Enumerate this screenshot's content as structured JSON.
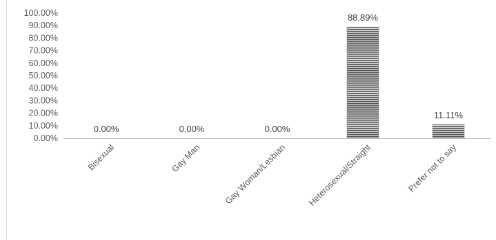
{
  "chart_data": {
    "type": "bar",
    "categories": [
      "Bisexual",
      "Gay Man",
      "Gay Woman/Lesbian",
      "Heterosexual/Straight",
      "Prefer not to say"
    ],
    "values": [
      0.0,
      0.0,
      0.0,
      88.89,
      11.11
    ],
    "data_labels": [
      "0.00%",
      "0.00%",
      "0.00%",
      "88.89%",
      "11.11%"
    ],
    "y_ticks": [
      "0.00%",
      "10.00%",
      "20.00%",
      "30.00%",
      "40.00%",
      "50.00%",
      "60.00%",
      "70.00%",
      "80.00%",
      "90.00%",
      "100.00%"
    ],
    "ylim": [
      0,
      100
    ],
    "title": "",
    "xlabel": "",
    "ylabel": "",
    "grid": false,
    "bar_color": "#8c8c8c",
    "axis_color": "#bfbfbf"
  }
}
